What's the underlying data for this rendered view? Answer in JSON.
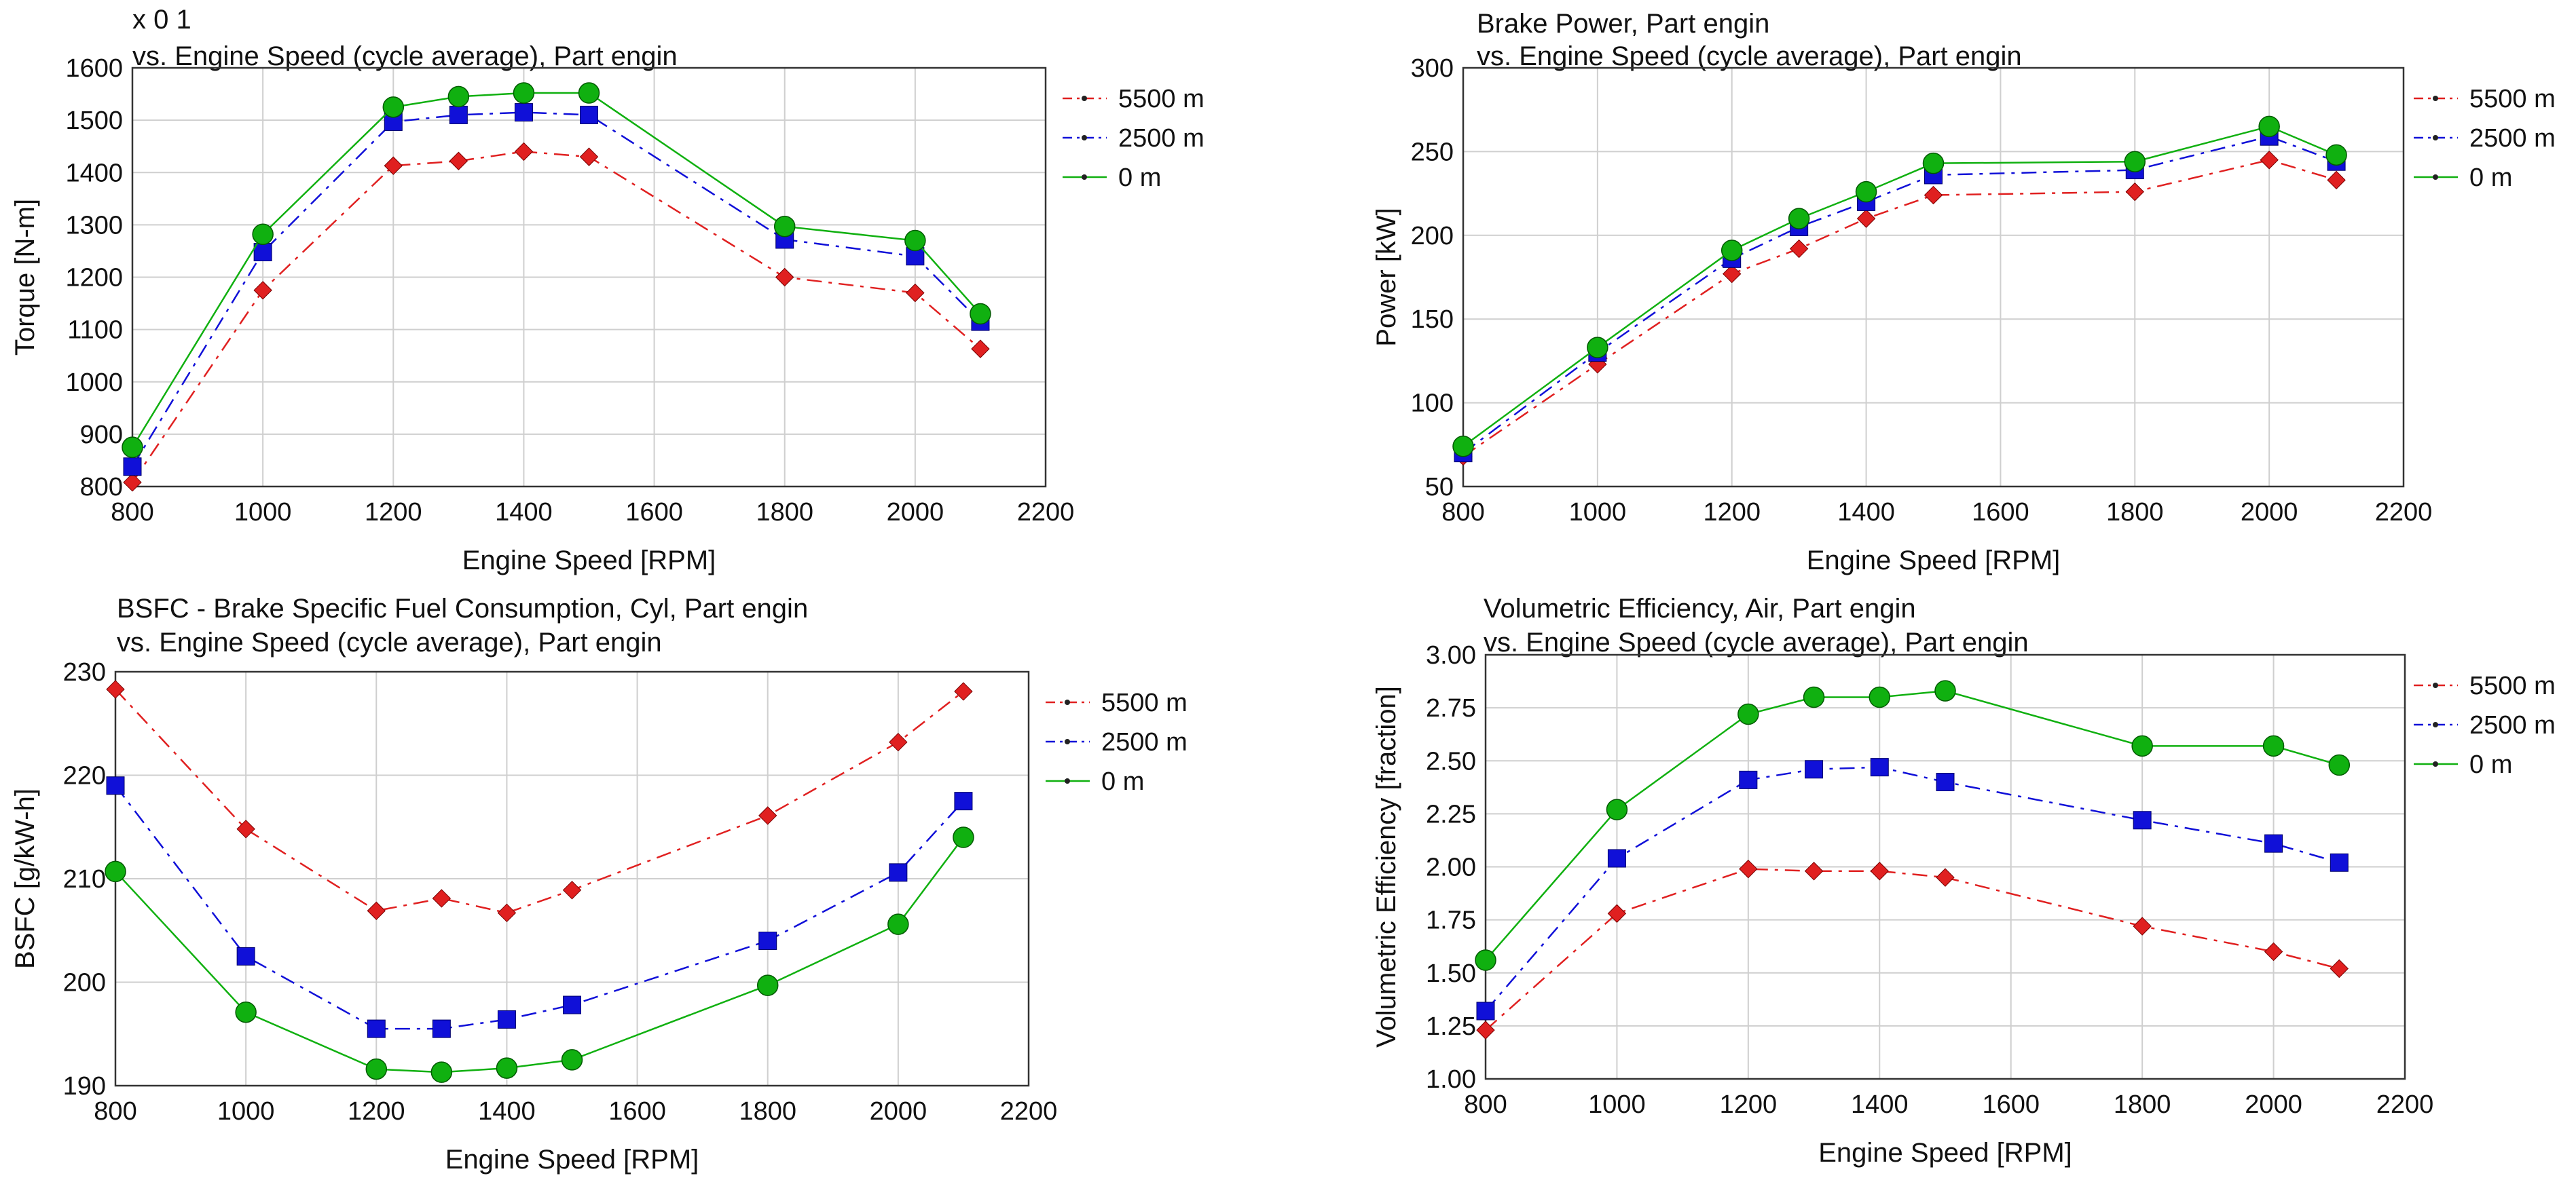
{
  "chart_data": [
    {
      "type": "line",
      "title": "",
      "title_prefix": "x 0 1",
      "subtitle": "vs. Engine Speed (cycle average), Part engin",
      "xlabel": "Engine Speed [RPM]",
      "ylabel": "Torque [N-m]",
      "xlim": [
        800,
        2200
      ],
      "ylim": [
        800,
        1600
      ],
      "xticks": [
        800,
        1000,
        1200,
        1400,
        1600,
        1800,
        2000,
        2200
      ],
      "yticks": [
        800,
        900,
        1000,
        1100,
        1200,
        1300,
        1400,
        1500,
        1600
      ],
      "ytick_labels": [
        "800",
        "900",
        "1000",
        "1100",
        "1200",
        "1300",
        "1400",
        "1500",
        "1600"
      ],
      "grid": true,
      "legend_position": "right",
      "x": [
        800,
        1000,
        1200,
        1300,
        1400,
        1500,
        1800,
        2000,
        2100
      ],
      "series": [
        {
          "name": "5500 m",
          "color": "#e02020",
          "marker": "diamond",
          "dash": "dashdot",
          "values": [
            808,
            1175,
            1413,
            1422,
            1440,
            1430,
            1200,
            1170,
            1063
          ]
        },
        {
          "name": "2500 m",
          "color": "#1010d8",
          "marker": "square",
          "dash": "dashdot",
          "values": [
            838,
            1248,
            1497,
            1510,
            1515,
            1510,
            1272,
            1240,
            1115
          ]
        },
        {
          "name": "0 m",
          "color": "#10b010",
          "marker": "circle",
          "dash": "solid",
          "values": [
            875,
            1282,
            1525,
            1545,
            1552,
            1552,
            1297,
            1270,
            1130
          ]
        }
      ]
    },
    {
      "type": "line",
      "title": "Brake Power, Part engin",
      "subtitle": "vs. Engine Speed (cycle average), Part engin",
      "xlabel": "Engine Speed [RPM]",
      "ylabel": "Power [kW]",
      "xlim": [
        800,
        2200
      ],
      "ylim": [
        50,
        300
      ],
      "xticks": [
        800,
        1000,
        1200,
        1400,
        1600,
        1800,
        2000,
        2200
      ],
      "yticks": [
        50,
        100,
        150,
        200,
        250,
        300
      ],
      "ytick_labels": [
        "50",
        "100",
        "150",
        "200",
        "250",
        "300"
      ],
      "grid": true,
      "legend_position": "right",
      "x": [
        800,
        1000,
        1200,
        1300,
        1400,
        1500,
        1800,
        2000,
        2100
      ],
      "series": [
        {
          "name": "5500 m",
          "color": "#e02020",
          "marker": "diamond",
          "dash": "dashdot",
          "values": [
            68,
            123,
            177,
            192,
            210,
            224,
            226,
            245,
            233
          ]
        },
        {
          "name": "2500 m",
          "color": "#1010d8",
          "marker": "square",
          "dash": "dashdot",
          "values": [
            70,
            130,
            186,
            205,
            220,
            236,
            239,
            259,
            244
          ]
        },
        {
          "name": "0 m",
          "color": "#10b010",
          "marker": "circle",
          "dash": "solid",
          "values": [
            74,
            133,
            191,
            210,
            226,
            243,
            244,
            265,
            248
          ]
        }
      ]
    },
    {
      "type": "line",
      "title": "BSFC - Brake Specific Fuel Consumption, Cyl, Part engin",
      "subtitle": "vs. Engine Speed (cycle average), Part engin",
      "xlabel": "Engine Speed [RPM]",
      "ylabel": "BSFC [g/kW-h]",
      "xlim": [
        800,
        2200
      ],
      "ylim": [
        190,
        230
      ],
      "xticks": [
        800,
        1000,
        1200,
        1400,
        1600,
        1800,
        2000,
        2200
      ],
      "yticks": [
        190,
        200,
        210,
        220,
        230
      ],
      "ytick_labels": [
        "190",
        "200",
        "210",
        "220",
        "230"
      ],
      "grid": true,
      "legend_position": "right",
      "x": [
        800,
        1000,
        1200,
        1300,
        1400,
        1500,
        1800,
        2000,
        2100
      ],
      "series": [
        {
          "name": "5500 m",
          "color": "#e02020",
          "marker": "diamond",
          "dash": "dashdot",
          "values": [
            228.3,
            214.8,
            206.9,
            208.1,
            206.7,
            208.9,
            216.1,
            223.2,
            228.1
          ]
        },
        {
          "name": "2500 m",
          "color": "#1010d8",
          "marker": "square",
          "dash": "dashdot",
          "values": [
            219.0,
            202.5,
            195.5,
            195.5,
            196.4,
            197.8,
            204.0,
            210.6,
            217.5
          ]
        },
        {
          "name": "0 m",
          "color": "#10b010",
          "marker": "circle",
          "dash": "solid",
          "values": [
            210.7,
            197.1,
            191.6,
            191.3,
            191.7,
            192.5,
            199.7,
            205.6,
            214.0
          ]
        }
      ]
    },
    {
      "type": "line",
      "title": "Volumetric Efficiency, Air, Part engin",
      "subtitle": "vs. Engine Speed (cycle average), Part engin",
      "xlabel": "Engine Speed [RPM]",
      "ylabel": "Volumetric Efficiency [fraction]",
      "xlim": [
        800,
        2200
      ],
      "ylim": [
        1.0,
        3.0
      ],
      "xticks": [
        800,
        1000,
        1200,
        1400,
        1600,
        1800,
        2000,
        2200
      ],
      "yticks": [
        1.0,
        1.25,
        1.5,
        1.75,
        2.0,
        2.25,
        2.5,
        2.75,
        3.0
      ],
      "ytick_labels": [
        "1.00",
        "1.25",
        "1.50",
        "1.75",
        "2.00",
        "2.25",
        "2.50",
        "2.75",
        "3.00"
      ],
      "grid": true,
      "legend_position": "right",
      "x": [
        800,
        1000,
        1200,
        1300,
        1400,
        1500,
        1800,
        2000,
        2100
      ],
      "series": [
        {
          "name": "5500 m",
          "color": "#e02020",
          "marker": "diamond",
          "dash": "dashdot",
          "values": [
            1.23,
            1.78,
            1.99,
            1.98,
            1.98,
            1.95,
            1.72,
            1.6,
            1.52
          ]
        },
        {
          "name": "2500 m",
          "color": "#1010d8",
          "marker": "square",
          "dash": "dashdot",
          "values": [
            1.32,
            2.04,
            2.41,
            2.46,
            2.47,
            2.4,
            2.22,
            2.11,
            2.02
          ]
        },
        {
          "name": "0 m",
          "color": "#10b010",
          "marker": "circle",
          "dash": "solid",
          "values": [
            1.56,
            2.27,
            2.72,
            2.8,
            2.8,
            2.83,
            2.57,
            2.57,
            2.48
          ]
        }
      ]
    }
  ]
}
